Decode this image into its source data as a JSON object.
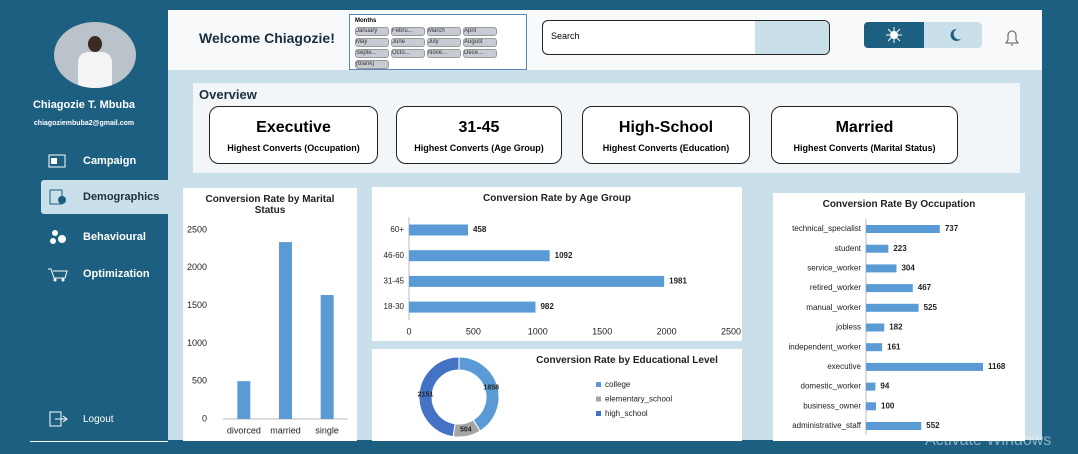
{
  "profile": {
    "name": "Chiagozie T. Mbuba",
    "email": "chiagoziembuba2@gmail.com"
  },
  "nav": [
    "Campaign",
    "Demographics",
    "Behavioural",
    "Optimization"
  ],
  "logout": "Logout",
  "header": {
    "welcome": "Welcome Chiagozie!",
    "slicer_title": "Months",
    "months": [
      "January",
      "Febru...",
      "March",
      "April",
      "May",
      "June",
      "July",
      "August",
      "Septe...",
      "Octo...",
      "Nove...",
      "Dece...",
      "(blank)"
    ],
    "search": "Search"
  },
  "overview": {
    "title": "Overview",
    "cards": [
      {
        "value": "Executive",
        "label": "Highest Converts (Occupation)"
      },
      {
        "value": "31-45",
        "label": "Highest Converts (Age Group)"
      },
      {
        "value": "High-School",
        "label": "Highest Converts (Education)"
      },
      {
        "value": "Married",
        "label": "Highest Converts (Marital Status)"
      }
    ]
  },
  "watermark": "Activate Windows",
  "chart_data": [
    {
      "type": "bar",
      "title": "Conversion Rate by Marital Status",
      "categories": [
        "divorced",
        "married",
        "single"
      ],
      "values": [
        500,
        2340,
        1640
      ],
      "color": "#5b9bd5",
      "ylim": [
        0,
        2500
      ],
      "yticks": [
        0,
        500,
        1000,
        1500,
        2000,
        2500
      ]
    },
    {
      "type": "hbar",
      "title": "Conversion Rate by Age Group",
      "categories": [
        "60+",
        "46-60",
        "31-45",
        "18-30"
      ],
      "values": [
        458,
        1092,
        1981,
        982
      ],
      "color": "#5b9bd5",
      "xlim": [
        0,
        2500
      ],
      "xticks": [
        0,
        500,
        1000,
        1500,
        2000,
        2500
      ]
    },
    {
      "type": "donut",
      "title": "Conversion Rate by Educational Level",
      "categories": [
        "college",
        "elementary_school",
        "high_school"
      ],
      "values": [
        1858,
        504,
        2151
      ],
      "colors": [
        "#5b9bd5",
        "#a5a5a5",
        "#4472c4"
      ]
    },
    {
      "type": "hbar",
      "title": "Conversion Rate By Occupation",
      "categories": [
        "technical_specialist",
        "student",
        "service_worker",
        "retired_worker",
        "manual_worker",
        "jobless",
        "independent_worker",
        "executive",
        "domestic_worker",
        "business_owner",
        "administrative_staff"
      ],
      "values": [
        737,
        223,
        304,
        467,
        525,
        182,
        161,
        1168,
        94,
        100,
        552
      ],
      "color": "#5b9bd5"
    }
  ]
}
